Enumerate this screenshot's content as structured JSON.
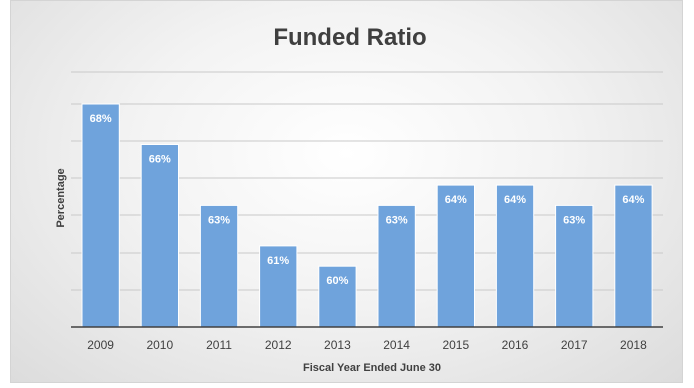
{
  "chart_data": {
    "type": "bar",
    "title": "Funded Ratio",
    "xlabel": "Fiscal Year Ended June 30",
    "ylabel": "Percentage",
    "categories": [
      "2009",
      "2010",
      "2011",
      "2012",
      "2013",
      "2014",
      "2015",
      "2016",
      "2017",
      "2018"
    ],
    "values": [
      68,
      66,
      63,
      61,
      60,
      63,
      64,
      64,
      63,
      64
    ],
    "value_labels": [
      "68%",
      "66%",
      "63%",
      "61%",
      "60%",
      "63%",
      "64%",
      "64%",
      "63%",
      "64%"
    ],
    "ylim": [
      57,
      68
    ],
    "grid": true,
    "legend": "none",
    "bar_color": "#6fa3dc",
    "bar_edge_color": "#ffffff"
  }
}
